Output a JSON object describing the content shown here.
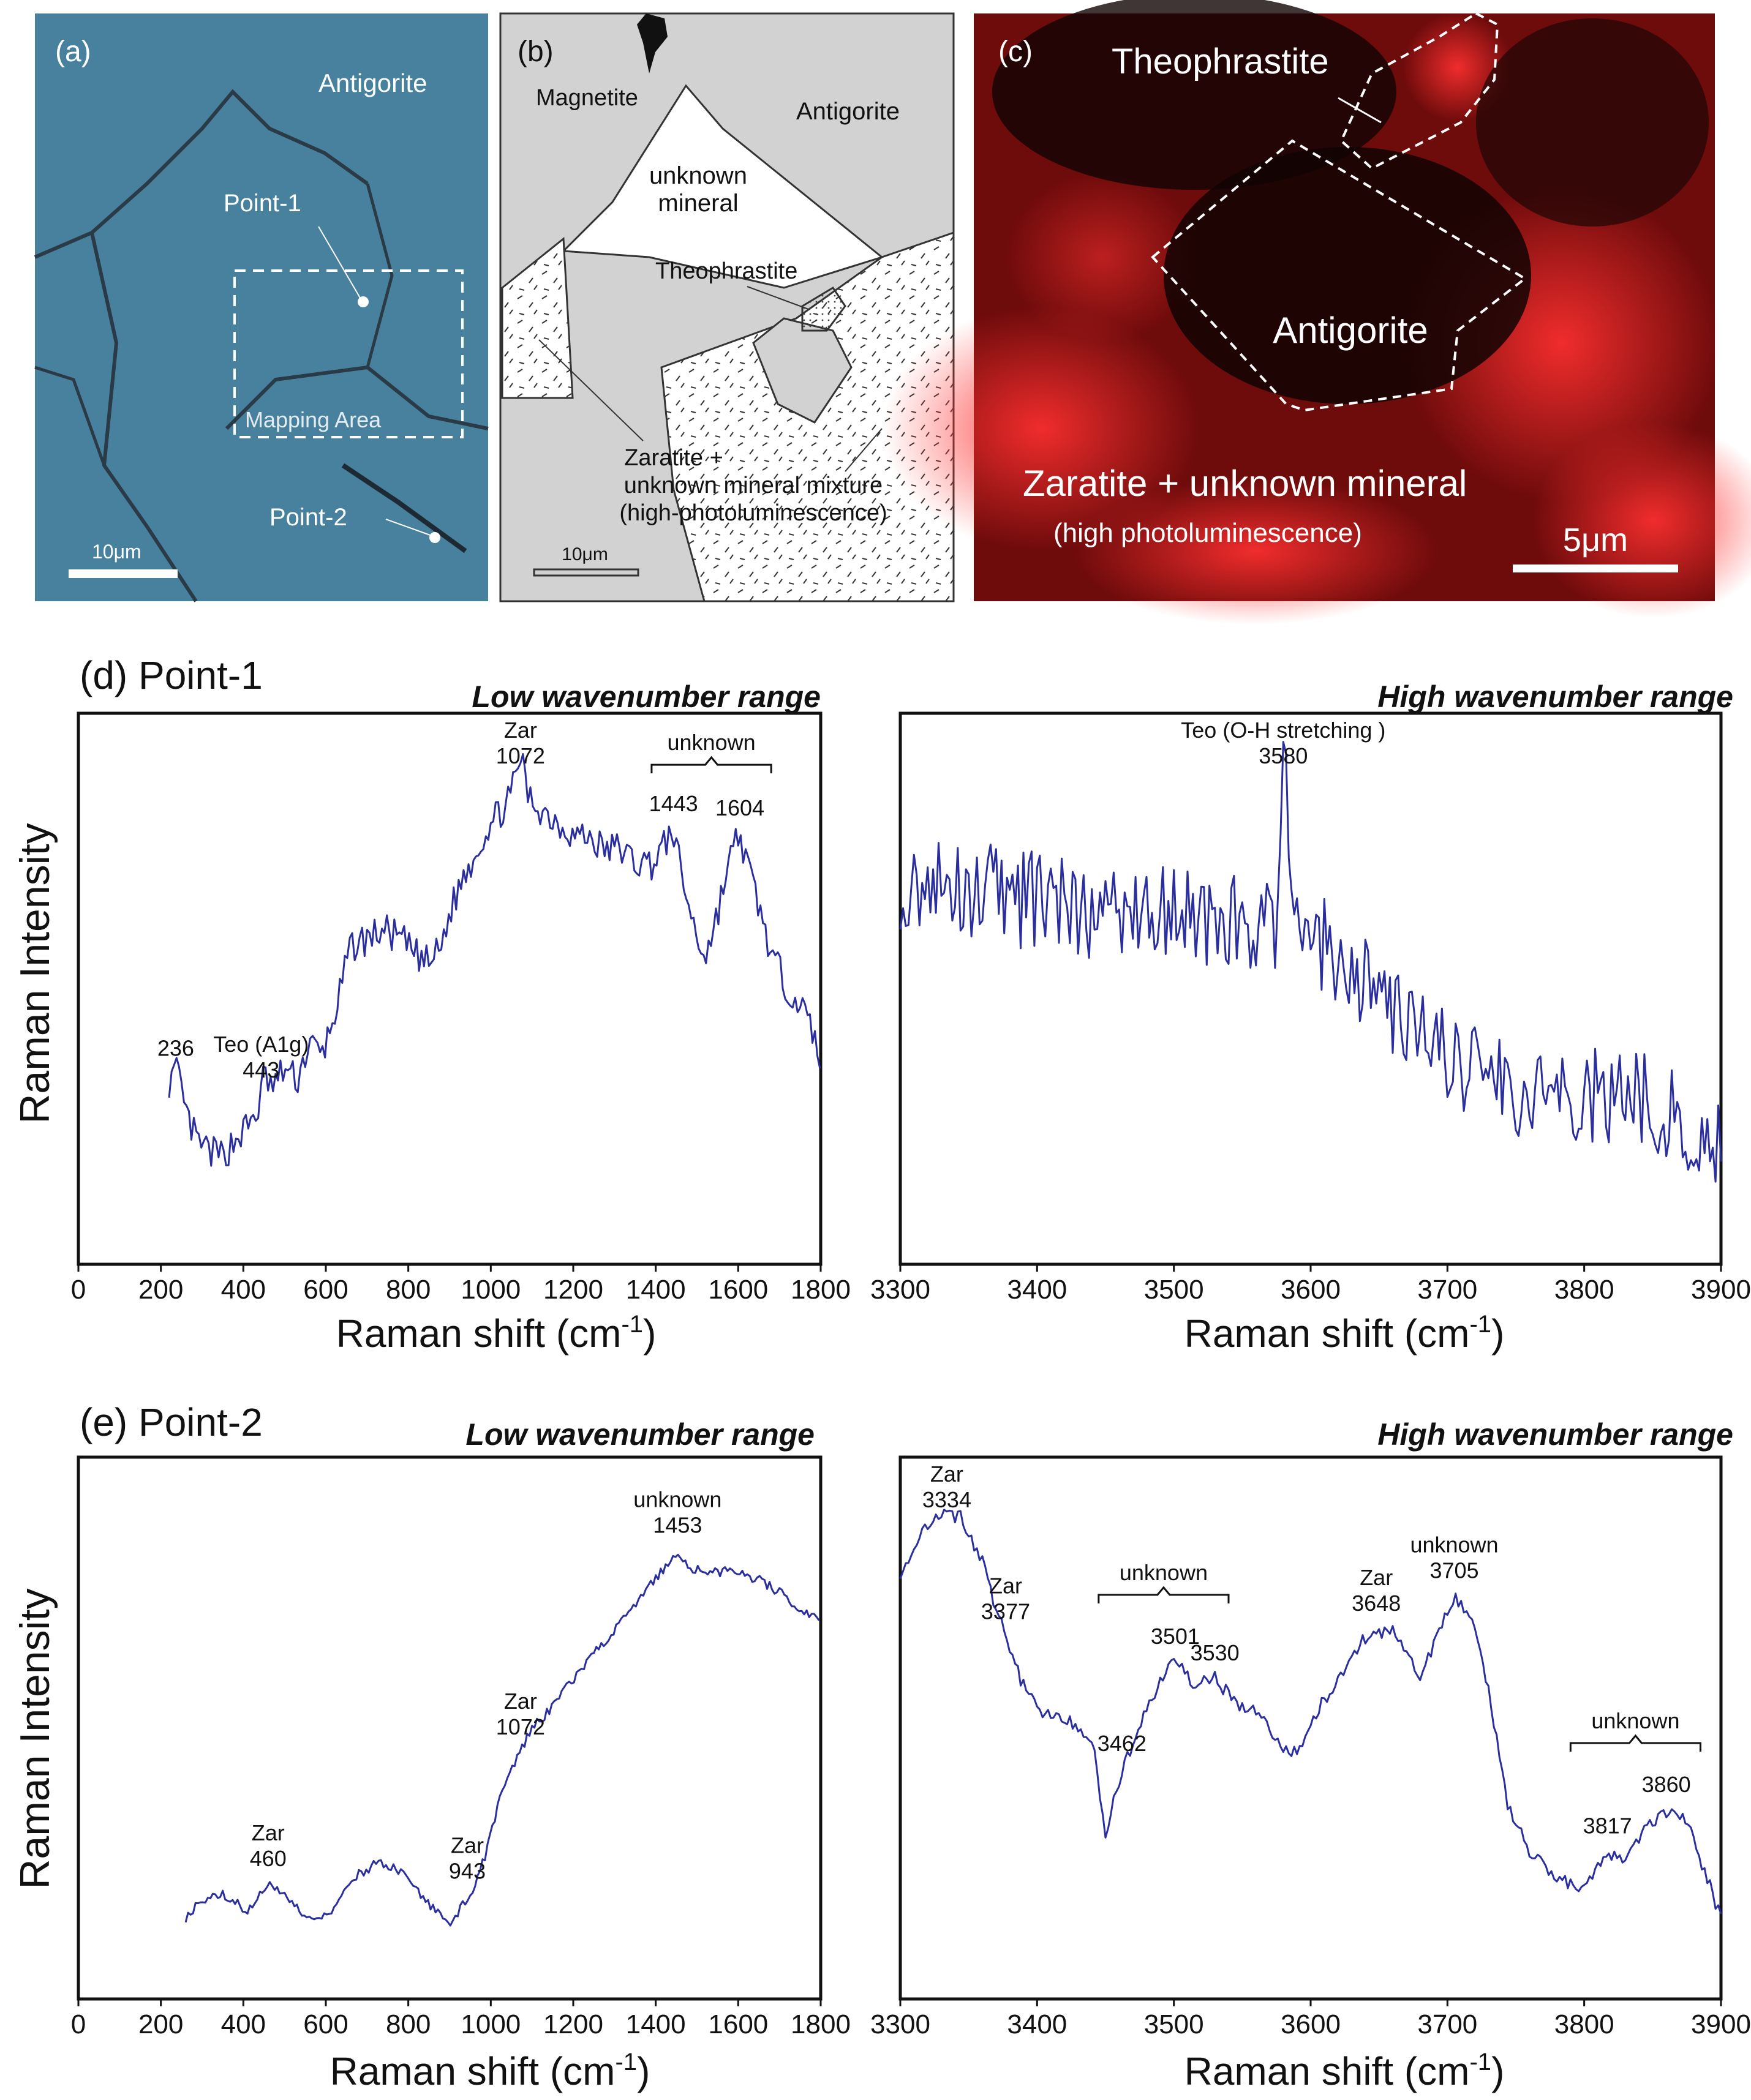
{
  "panels": {
    "a": {
      "tag": "(a)",
      "labels": {
        "antigorite": "Antigorite",
        "point1": "Point-1",
        "mapping": "Mapping Area",
        "point2": "Point-2"
      },
      "scale": "10μm"
    },
    "b": {
      "tag": "(b)",
      "labels": {
        "magnetite": "Magnetite",
        "antigorite": "Antigorite",
        "unknown1": "unknown",
        "unknown2": "mineral",
        "theo": "Theophrastite",
        "mix1": "Zaratite +",
        "mix2": "unknown mineral mixture",
        "mix3": "(high-photoluminescence)"
      },
      "scale": "10μm"
    },
    "c": {
      "tag": "(c)",
      "labels": {
        "theo": "Theophrastite",
        "antigorite": "Antigorite",
        "zar": "Zaratite + unknown mineral",
        "zar2": "(high photoluminescence)"
      },
      "scale": "5μm"
    }
  },
  "section_d": {
    "title": "(d) Point-1"
  },
  "section_e": {
    "title": "(e) Point-2"
  },
  "common": {
    "low_range": "Low wavenumber range",
    "high_range": "High wavenumber range",
    "ylabel": "Raman Intensity",
    "xlabel": "Raman shift (cm",
    "xlabel_sup": "-1",
    "xlabel_close": ")"
  },
  "colors": {
    "line": "#2b2f9e",
    "panel_a": "#5a8fa8",
    "panel_c": "#8a0f0f",
    "gray": "#d2d2d2"
  },
  "chart_data": [
    {
      "id": "d-low",
      "type": "line",
      "xlabel": "Raman shift (cm-1)",
      "ylabel": "Raman Intensity",
      "xlim": [
        0,
        1800
      ],
      "ylim": [
        0,
        100
      ],
      "xticks": [
        0,
        200,
        400,
        600,
        800,
        1000,
        1200,
        1400,
        1600,
        1800
      ],
      "points": [
        [
          220,
          28
        ],
        [
          240,
          30
        ],
        [
          260,
          20
        ],
        [
          290,
          13
        ],
        [
          320,
          11
        ],
        [
          350,
          10
        ],
        [
          380,
          14
        ],
        [
          410,
          17
        ],
        [
          440,
          22
        ],
        [
          450,
          30
        ],
        [
          470,
          26
        ],
        [
          500,
          31
        ],
        [
          530,
          28
        ],
        [
          560,
          37
        ],
        [
          590,
          34
        ],
        [
          610,
          40
        ],
        [
          630,
          47
        ],
        [
          660,
          60
        ],
        [
          700,
          62
        ],
        [
          740,
          64
        ],
        [
          780,
          62
        ],
        [
          820,
          58
        ],
        [
          850,
          56
        ],
        [
          880,
          60
        ],
        [
          900,
          68
        ],
        [
          930,
          76
        ],
        [
          960,
          82
        ],
        [
          990,
          88
        ],
        [
          1020,
          92
        ],
        [
          1050,
          96
        ],
        [
          1072,
          106
        ],
        [
          1090,
          96
        ],
        [
          1120,
          93
        ],
        [
          1160,
          90
        ],
        [
          1200,
          87
        ],
        [
          1240,
          86
        ],
        [
          1280,
          83
        ],
        [
          1310,
          84
        ],
        [
          1350,
          80
        ],
        [
          1390,
          80
        ],
        [
          1420,
          84
        ],
        [
          1443,
          88
        ],
        [
          1460,
          78
        ],
        [
          1480,
          70
        ],
        [
          1500,
          62
        ],
        [
          1520,
          58
        ],
        [
          1540,
          64
        ],
        [
          1570,
          77
        ],
        [
          1590,
          84
        ],
        [
          1604,
          87
        ],
        [
          1620,
          80
        ],
        [
          1650,
          70
        ],
        [
          1680,
          58
        ],
        [
          1710,
          52
        ],
        [
          1740,
          48
        ],
        [
          1770,
          42
        ],
        [
          1800,
          34
        ]
      ],
      "noise": 4,
      "annotations": [
        {
          "x": 236,
          "lines": [
            "236"
          ]
        },
        {
          "x": 443,
          "lines": [
            "Teo (A1g)",
            "443"
          ]
        },
        {
          "x": 1072,
          "lines": [
            "Zar",
            "1072"
          ]
        },
        {
          "x": 1443,
          "lines": [
            "1443"
          ]
        },
        {
          "x": 1604,
          "lines": [
            "1604"
          ]
        }
      ],
      "bracket": {
        "label": "unknown",
        "x1": 1390,
        "x2": 1680
      }
    },
    {
      "id": "d-high",
      "type": "line",
      "xlabel": "Raman shift (cm-1)",
      "ylabel": "Raman Intensity",
      "xlim": [
        3300,
        3900
      ],
      "ylim": [
        0,
        100
      ],
      "xticks": [
        3300,
        3400,
        3500,
        3600,
        3700,
        3800,
        3900
      ],
      "points": [
        [
          3300,
          76
        ],
        [
          3340,
          74
        ],
        [
          3380,
          72
        ],
        [
          3420,
          70
        ],
        [
          3460,
          68
        ],
        [
          3500,
          68
        ],
        [
          3540,
          66
        ],
        [
          3570,
          64
        ],
        [
          3575,
          66
        ],
        [
          3580,
          116
        ],
        [
          3585,
          70
        ],
        [
          3600,
          62
        ],
        [
          3630,
          56
        ],
        [
          3660,
          46
        ],
        [
          3690,
          36
        ],
        [
          3720,
          30
        ],
        [
          3760,
          26
        ],
        [
          3800,
          24
        ],
        [
          3840,
          24
        ],
        [
          3870,
          20
        ],
        [
          3900,
          14
        ]
      ],
      "noise": 12,
      "annotations": [
        {
          "x": 3580,
          "lines": [
            "Teo (O-H stretching )",
            "3580"
          ]
        }
      ]
    },
    {
      "id": "e-low",
      "type": "line",
      "xlabel": "Raman shift (cm-1)",
      "ylabel": "Raman Intensity",
      "xlim": [
        0,
        1800
      ],
      "ylim": [
        0,
        100
      ],
      "xticks": [
        0,
        200,
        400,
        600,
        800,
        1000,
        1200,
        1400,
        1600,
        1800
      ],
      "points": [
        [
          260,
          4
        ],
        [
          300,
          8
        ],
        [
          340,
          10
        ],
        [
          380,
          8
        ],
        [
          410,
          5
        ],
        [
          440,
          10
        ],
        [
          460,
          12
        ],
        [
          490,
          10
        ],
        [
          530,
          6
        ],
        [
          570,
          3
        ],
        [
          600,
          4
        ],
        [
          630,
          8
        ],
        [
          670,
          14
        ],
        [
          720,
          17
        ],
        [
          770,
          16
        ],
        [
          820,
          11
        ],
        [
          870,
          5
        ],
        [
          900,
          3
        ],
        [
          920,
          5
        ],
        [
          943,
          9
        ],
        [
          960,
          11
        ],
        [
          990,
          20
        ],
        [
          1020,
          32
        ],
        [
          1050,
          40
        ],
        [
          1072,
          44
        ],
        [
          1100,
          50
        ],
        [
          1150,
          55
        ],
        [
          1200,
          62
        ],
        [
          1250,
          68
        ],
        [
          1300,
          74
        ],
        [
          1350,
          80
        ],
        [
          1400,
          86
        ],
        [
          1430,
          90
        ],
        [
          1453,
          93
        ],
        [
          1480,
          89
        ],
        [
          1520,
          88
        ],
        [
          1560,
          88
        ],
        [
          1600,
          88
        ],
        [
          1650,
          86
        ],
        [
          1700,
          83
        ],
        [
          1750,
          79
        ],
        [
          1800,
          76
        ]
      ],
      "noise": 1.2,
      "annotations": [
        {
          "x": 460,
          "lines": [
            "Zar",
            "460"
          ]
        },
        {
          "x": 943,
          "lines": [
            "Zar",
            "943"
          ]
        },
        {
          "x": 1072,
          "lines": [
            "Zar",
            "1072"
          ]
        },
        {
          "x": 1453,
          "lines": [
            "unknown",
            "1453"
          ]
        }
      ]
    },
    {
      "id": "e-high",
      "type": "line",
      "xlabel": "Raman shift (cm-1)",
      "ylabel": "Raman Intensity",
      "xlim": [
        3300,
        3900
      ],
      "ylim": [
        0,
        100
      ],
      "xticks": [
        3300,
        3400,
        3500,
        3600,
        3700,
        3800,
        3900
      ],
      "points": [
        [
          3300,
          88
        ],
        [
          3310,
          93
        ],
        [
          3320,
          100
        ],
        [
          3334,
          102
        ],
        [
          3345,
          101
        ],
        [
          3360,
          90
        ],
        [
          3377,
          72
        ],
        [
          3390,
          60
        ],
        [
          3400,
          55
        ],
        [
          3420,
          52
        ],
        [
          3440,
          48
        ],
        [
          3450,
          24
        ],
        [
          3462,
          40
        ],
        [
          3475,
          50
        ],
        [
          3490,
          62
        ],
        [
          3501,
          66
        ],
        [
          3515,
          60
        ],
        [
          3530,
          62
        ],
        [
          3545,
          56
        ],
        [
          3560,
          54
        ],
        [
          3580,
          45
        ],
        [
          3590,
          44
        ],
        [
          3600,
          52
        ],
        [
          3620,
          62
        ],
        [
          3635,
          70
        ],
        [
          3648,
          74
        ],
        [
          3660,
          73
        ],
        [
          3670,
          68
        ],
        [
          3680,
          62
        ],
        [
          3690,
          70
        ],
        [
          3705,
          82
        ],
        [
          3715,
          78
        ],
        [
          3725,
          68
        ],
        [
          3735,
          50
        ],
        [
          3745,
          30
        ],
        [
          3760,
          20
        ],
        [
          3780,
          14
        ],
        [
          3800,
          11
        ],
        [
          3817,
          20
        ],
        [
          3830,
          18
        ],
        [
          3845,
          26
        ],
        [
          3860,
          30
        ],
        [
          3875,
          28
        ],
        [
          3885,
          18
        ],
        [
          3900,
          4
        ]
      ],
      "noise": 1.8,
      "annotations": [
        {
          "x": 3334,
          "lines": [
            "Zar",
            "3334"
          ]
        },
        {
          "x": 3377,
          "lines": [
            "Zar",
            "3377"
          ]
        },
        {
          "x": 3462,
          "lines": [
            "3462"
          ]
        },
        {
          "x": 3501,
          "lines": [
            "3501"
          ]
        },
        {
          "x": 3530,
          "lines": [
            "3530"
          ]
        },
        {
          "x": 3648,
          "lines": [
            "Zar",
            "3648"
          ]
        },
        {
          "x": 3705,
          "lines": [
            "unknown",
            "3705"
          ]
        },
        {
          "x": 3817,
          "lines": [
            "3817"
          ]
        },
        {
          "x": 3860,
          "lines": [
            "3860"
          ]
        }
      ],
      "brackets": [
        {
          "label": "unknown",
          "x1": 3445,
          "x2": 3540
        },
        {
          "label": "unknown",
          "x1": 3790,
          "x2": 3885
        }
      ]
    }
  ]
}
